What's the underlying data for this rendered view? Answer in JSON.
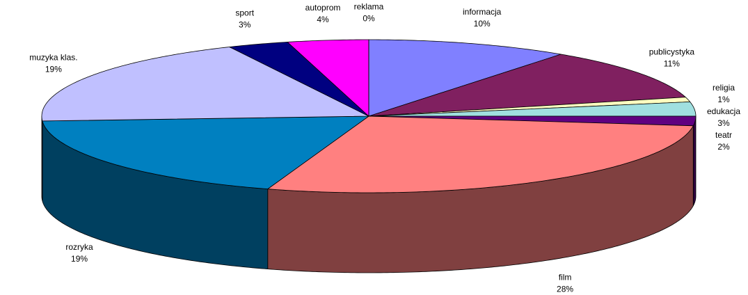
{
  "chart_data": {
    "type": "pie3d",
    "categories": [
      "informacja",
      "publicystyka",
      "religia",
      "edukacja",
      "teatr",
      "film",
      "rozryka",
      "muzyka klas.",
      "sport",
      "autoprom",
      "reklama"
    ],
    "values": [
      10,
      11,
      1,
      3,
      2,
      28,
      19,
      19,
      3,
      4,
      0
    ],
    "value_labels": [
      "10%",
      "11%",
      "1%",
      "3%",
      "2%",
      "28%",
      "19%",
      "19%",
      "3%",
      "4%",
      "0%"
    ],
    "colors": [
      "#8080ff",
      "#802060",
      "#ffffc0",
      "#a0e0e0",
      "#600080",
      "#ff8080",
      "#0080c0",
      "#c0c0ff",
      "#000080",
      "#ff00ff",
      "#800000"
    ]
  }
}
